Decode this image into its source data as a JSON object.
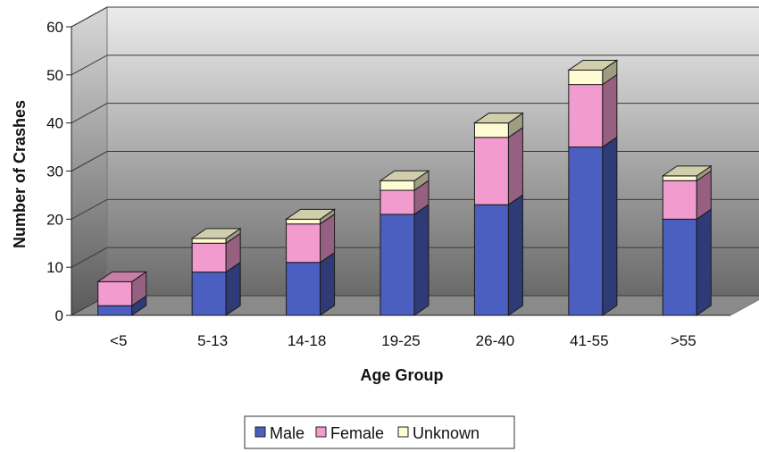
{
  "chart_data": {
    "type": "bar",
    "stacked": true,
    "three_d": true,
    "categories": [
      "<5",
      "5-13",
      "14-18",
      "19-25",
      "26-40",
      "41-55",
      ">55"
    ],
    "series": [
      {
        "name": "Male",
        "values": [
          2,
          9,
          11,
          21,
          23,
          35,
          20
        ],
        "color": "#4a5fbf"
      },
      {
        "name": "Female",
        "values": [
          5,
          6,
          8,
          5,
          14,
          13,
          8
        ],
        "color": "#f29bce"
      },
      {
        "name": "Unknown",
        "values": [
          0,
          1,
          1,
          2,
          3,
          3,
          1
        ],
        "color": "#fffbd2"
      }
    ],
    "xlabel": "Age Group",
    "ylabel": "Number of Crashes",
    "ylim": [
      0,
      60
    ],
    "yticks": [
      0,
      10,
      20,
      30,
      40,
      50,
      60
    ],
    "grid": true,
    "legend_position": "bottom"
  }
}
